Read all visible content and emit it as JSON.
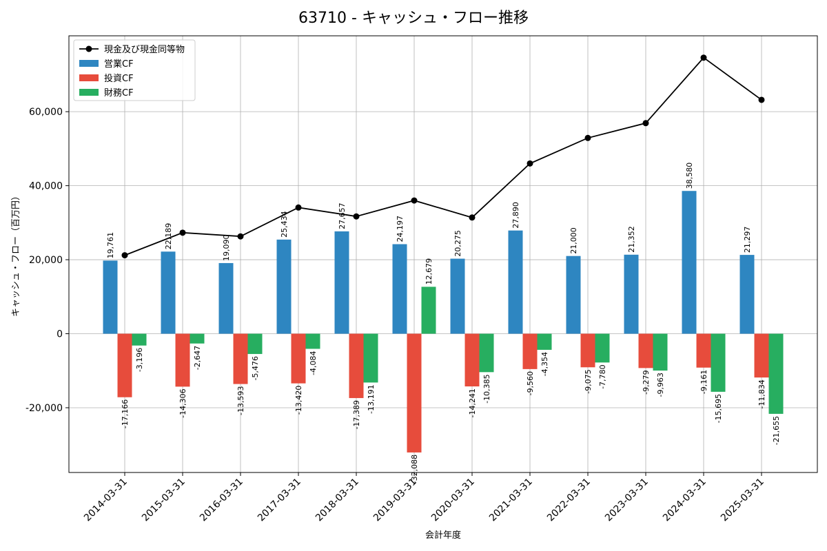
{
  "chart_data": {
    "type": "bar",
    "title": "63710 - キャッシュ・フロー推移",
    "xlabel": "会計年度",
    "ylabel": "キャッシュ・フロー（百万円）",
    "ylim": [
      -37500,
      80500
    ],
    "yticks": [
      -20000,
      0,
      20000,
      40000,
      60000
    ],
    "ytick_labels": [
      "-20,000",
      "0",
      "20,000",
      "40,000",
      "60,000"
    ],
    "grid": true,
    "legend_position": "top-left",
    "categories": [
      "2014-03-31",
      "2015-03-31",
      "2016-03-31",
      "2017-03-31",
      "2018-03-31",
      "2019-03-31",
      "2020-03-31",
      "2021-03-31",
      "2022-03-31",
      "2023-03-31",
      "2024-03-31",
      "2025-03-31"
    ],
    "series": [
      {
        "name": "営業CF",
        "kind": "bar",
        "color": "#2e86c1",
        "values": [
          19761,
          22189,
          19090,
          25434,
          27657,
          24197,
          20275,
          27890,
          21000,
          21352,
          38580,
          21297
        ],
        "labels": [
          "19,761",
          "22,189",
          "19,090",
          "25,434",
          "27,657",
          "24,197",
          "20,275",
          "27,890",
          "21,000",
          "21,352",
          "38,580",
          "21,297"
        ]
      },
      {
        "name": "投資CF",
        "kind": "bar",
        "color": "#e74c3c",
        "values": [
          -17166,
          -14306,
          -13593,
          -13420,
          -17389,
          -32088,
          -14241,
          -9560,
          -9075,
          -9279,
          -9161,
          -11834
        ],
        "labels": [
          "-17,166",
          "-14,306",
          "-13,593",
          "-13,420",
          "-17,389",
          "-32,088",
          "-14,241",
          "-9,560",
          "-9,075",
          "-9,279",
          "-9,161",
          "-11,834"
        ]
      },
      {
        "name": "財務CF",
        "kind": "bar",
        "color": "#27ae60",
        "values": [
          -3196,
          -2647,
          -5476,
          -4084,
          -13191,
          12679,
          -10385,
          -4354,
          -7780,
          -9963,
          -15695,
          -21655
        ],
        "labels": [
          "-3,196",
          "-2,647",
          "-5,476",
          "-4,084",
          "-13,191",
          "12,679",
          "-10,385",
          "-4,354",
          "-7,780",
          "-9,963",
          "-15,695",
          "-21,655"
        ]
      },
      {
        "name": "現金及び現金同等物",
        "kind": "line",
        "color": "#000000",
        "values": [
          21200,
          27300,
          26300,
          34100,
          31700,
          36000,
          31400,
          46000,
          52900,
          56900,
          74600,
          63200
        ]
      }
    ]
  }
}
